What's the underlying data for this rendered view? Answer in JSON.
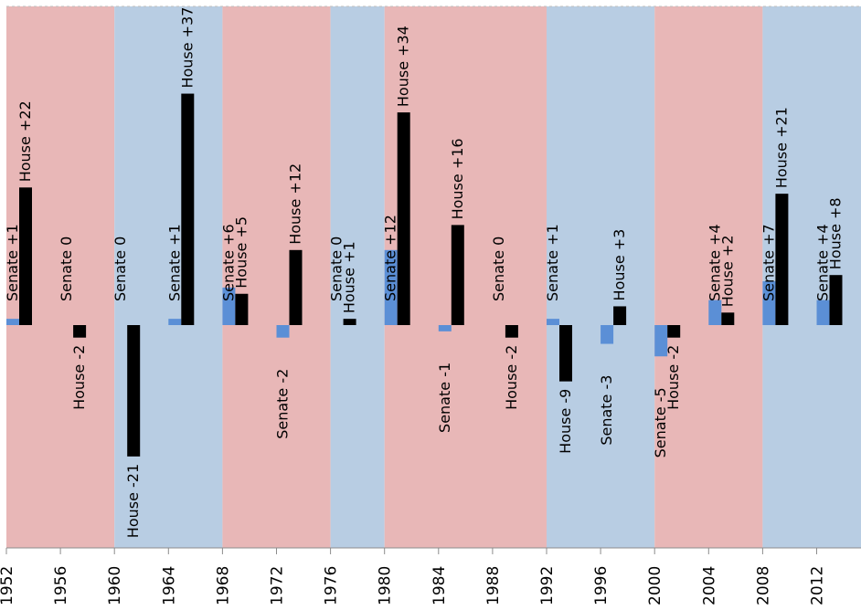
{
  "chart_data": {
    "type": "bar",
    "categories": [
      "1952",
      "1956",
      "1960",
      "1964",
      "1968",
      "1972",
      "1976",
      "1980",
      "1984",
      "1988",
      "1992",
      "1996",
      "2000",
      "2004",
      "2008",
      "2012"
    ],
    "series": [
      {
        "values": [
          1,
          0,
          0,
          1,
          6,
          -2,
          0,
          12,
          -1,
          0,
          1,
          -3,
          -5,
          4,
          7,
          4
        ],
        "color": "#5b8fd6"
      },
      {
        "values": [
          22,
          -2,
          -21,
          37,
          5,
          12,
          1,
          34,
          16,
          -2,
          -9,
          3,
          -2,
          2,
          21,
          8
        ],
        "color": "#000000"
      }
    ],
    "labels": {
      "senate": [
        "Senate +1",
        "Senate 0",
        "Senate 0",
        "Senate +1",
        "Senate +6",
        "Senate -2",
        "Senate 0",
        "Senate +12",
        "Senate -1",
        "Senate 0",
        "Senate +1",
        "Senate -3",
        "Senate -5",
        "Senate +4",
        "Senate +7",
        "Senate +4"
      ],
      "house": [
        "House +22",
        "House -2",
        "House -21",
        "House +37",
        "House +5",
        "House +12",
        "House +1",
        "House +34",
        "House +16",
        "House -2",
        "House -9",
        "House +3",
        "House -2",
        "House +2",
        "House +21",
        "House +8"
      ]
    },
    "x_ticks": [
      "1952",
      "1956",
      "1960",
      "1964",
      "1968",
      "1972",
      "1976",
      "1980",
      "1984",
      "1988",
      "1992",
      "1996",
      "2000",
      "2004",
      "2008",
      "2012"
    ],
    "background_spans": [
      {
        "from": 1952,
        "to": 1960,
        "color": "#e8b7b7"
      },
      {
        "from": 1960,
        "to": 1968,
        "color": "#b8cde3"
      },
      {
        "from": 1968,
        "to": 1976,
        "color": "#e8b7b7"
      },
      {
        "from": 1976,
        "to": 1980,
        "color": "#b8cde3"
      },
      {
        "from": 1980,
        "to": 1992,
        "color": "#e8b7b7"
      },
      {
        "from": 1992,
        "to": 2000,
        "color": "#b8cde3"
      },
      {
        "from": 2000,
        "to": 2008,
        "color": "#e8b7b7"
      },
      {
        "from": 2008,
        "to": 2016,
        "color": "#b8cde3"
      }
    ],
    "xlim": [
      1952,
      2016
    ],
    "ylim": [
      -35,
      37
    ],
    "grid": false,
    "legend": "none"
  }
}
